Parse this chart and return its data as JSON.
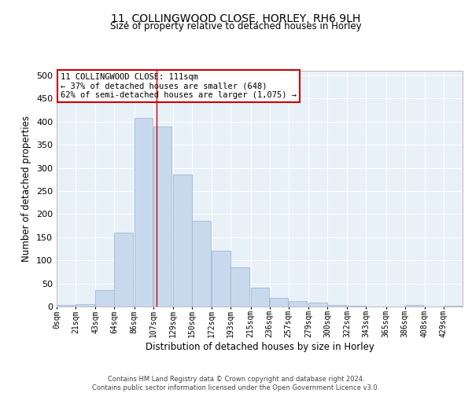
{
  "title_line1": "11, COLLINGWOOD CLOSE, HORLEY, RH6 9LH",
  "title_line2": "Size of property relative to detached houses in Horley",
  "xlabel": "Distribution of detached houses by size in Horley",
  "ylabel": "Number of detached properties",
  "bar_color": "#c9d9ed",
  "bar_edgecolor": "#a0b8d8",
  "background_color": "#e8f0f8",
  "grid_color": "#ffffff",
  "annotation_box_color": "#cc0000",
  "vline_color": "#cc0000",
  "property_sqm": 111,
  "annotation_text_line1": "11 COLLINGWOOD CLOSE: 111sqm",
  "annotation_text_line2": "← 37% of detached houses are smaller (648)",
  "annotation_text_line3": "62% of semi-detached houses are larger (1,075) →",
  "bin_labels": [
    "0sqm",
    "21sqm",
    "43sqm",
    "64sqm",
    "86sqm",
    "107sqm",
    "129sqm",
    "150sqm",
    "172sqm",
    "193sqm",
    "215sqm",
    "236sqm",
    "257sqm",
    "279sqm",
    "300sqm",
    "322sqm",
    "343sqm",
    "365sqm",
    "386sqm",
    "408sqm",
    "429sqm"
  ],
  "bin_edges": [
    0,
    21,
    43,
    64,
    86,
    107,
    129,
    150,
    172,
    193,
    215,
    236,
    257,
    279,
    300,
    322,
    343,
    365,
    386,
    408,
    429
  ],
  "bar_heights": [
    3,
    5,
    35,
    160,
    408,
    390,
    285,
    185,
    120,
    85,
    40,
    18,
    12,
    8,
    4,
    2,
    0,
    0,
    3,
    0,
    2
  ],
  "ylim": [
    0,
    510
  ],
  "yticks": [
    0,
    50,
    100,
    150,
    200,
    250,
    300,
    350,
    400,
    450,
    500
  ],
  "footer_line1": "Contains HM Land Registry data © Crown copyright and database right 2024.",
  "footer_line2": "Contains public sector information licensed under the Open Government Licence v3.0."
}
